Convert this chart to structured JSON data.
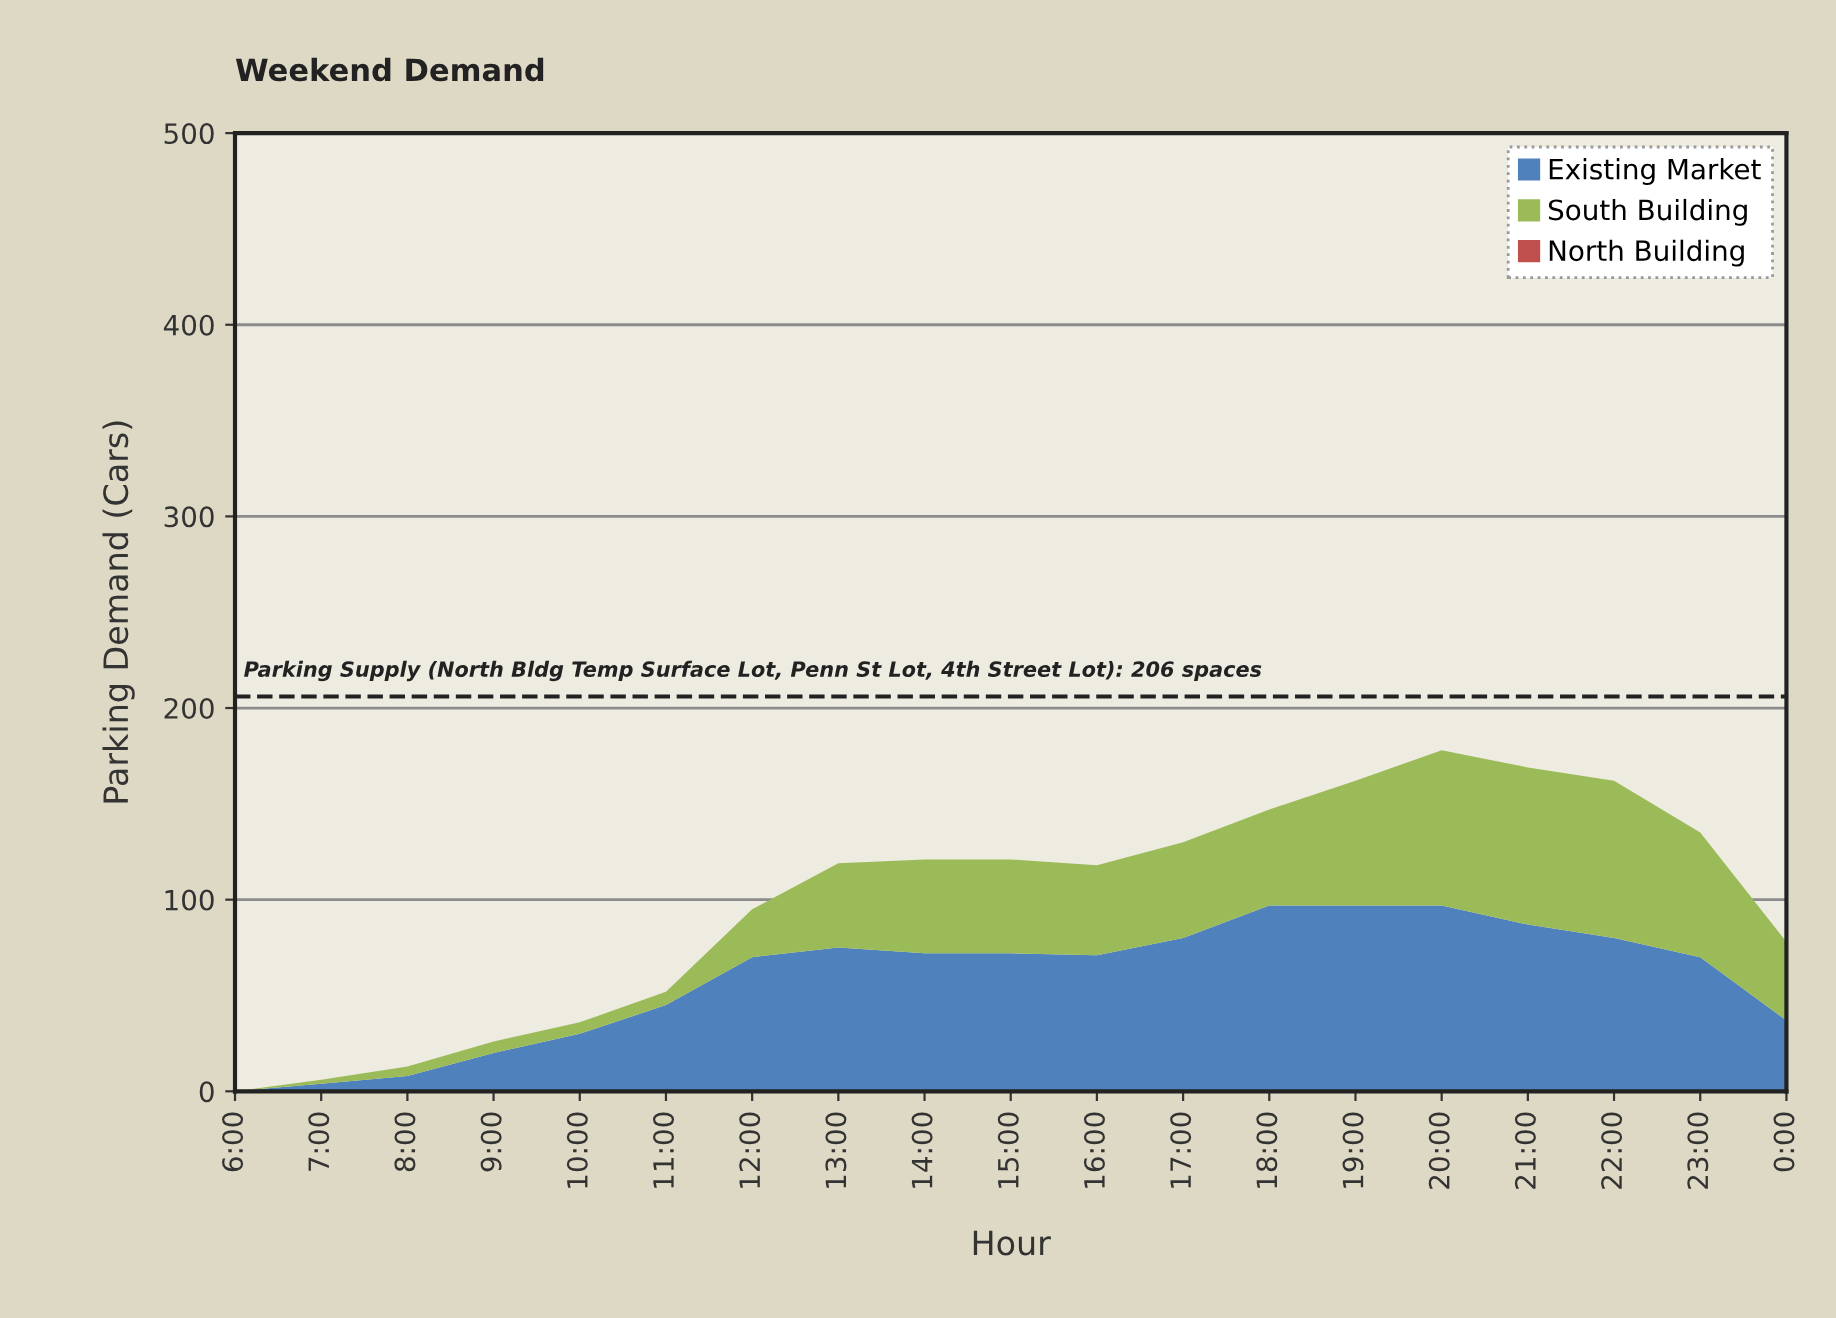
{
  "chart_data": {
    "type": "area",
    "title": "Weekend Demand",
    "xlabel": "Hour",
    "ylabel": "Parking Demand (Cars)",
    "categories": [
      "6:00",
      "7:00",
      "8:00",
      "9:00",
      "10:00",
      "11:00",
      "12:00",
      "13:00",
      "14:00",
      "15:00",
      "16:00",
      "17:00",
      "18:00",
      "19:00",
      "20:00",
      "21:00",
      "22:00",
      "23:00",
      "0:00"
    ],
    "stacked": true,
    "series": [
      {
        "name": "Existing Market",
        "color": "#4f81bd",
        "values": [
          0,
          4,
          8,
          20,
          30,
          45,
          70,
          75,
          72,
          72,
          71,
          80,
          97,
          97,
          97,
          87,
          80,
          70,
          37
        ]
      },
      {
        "name": "South Building",
        "color": "#9bbb59",
        "values": [
          0,
          2,
          5,
          6,
          6,
          7,
          25,
          44,
          49,
          49,
          47,
          50,
          50,
          65,
          81,
          82,
          82,
          65,
          41
        ]
      },
      {
        "name": "North Building",
        "color": "#c0504d",
        "values": [
          null,
          null,
          null,
          null,
          null,
          null,
          null,
          null,
          null,
          null,
          null,
          null,
          null,
          null,
          null,
          null,
          null,
          null,
          null
        ]
      }
    ],
    "ylim": [
      0,
      500
    ],
    "yticks": [
      0,
      100,
      200,
      300,
      400,
      500
    ],
    "grid": "y",
    "legend": "top right",
    "ref_lines": [
      {
        "axis": "y",
        "value": 206,
        "label": "Parking Supply (North Bldg Temp Surface Lot, Penn St Lot, 4th Street Lot): 206 spaces",
        "color": "#222222",
        "line_style": "dashed"
      }
    ]
  }
}
